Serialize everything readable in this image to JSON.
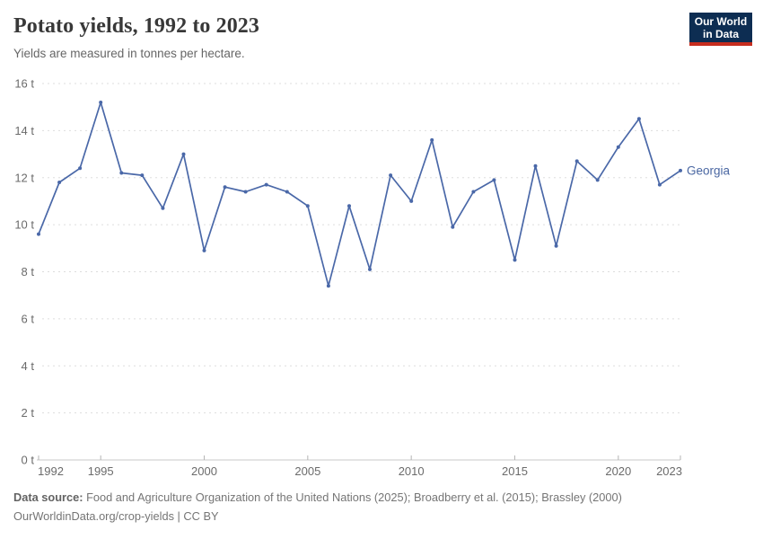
{
  "header": {
    "title": "Potato yields, 1992 to 2023",
    "subtitle": "Yields are measured in tonnes per hectare."
  },
  "logo": {
    "line1": "Our World",
    "line2": "in Data"
  },
  "chart_data": {
    "type": "line",
    "title": "Potato yields, 1992 to 2023",
    "unit": "tonnes per hectare",
    "x": [
      1992,
      1993,
      1994,
      1995,
      1996,
      1997,
      1998,
      1999,
      2000,
      2001,
      2002,
      2003,
      2004,
      2005,
      2006,
      2007,
      2008,
      2009,
      2010,
      2011,
      2012,
      2013,
      2014,
      2015,
      2016,
      2017,
      2018,
      2019,
      2020,
      2021,
      2022,
      2023
    ],
    "series": [
      {
        "name": "Georgia",
        "color": "#4a68a8",
        "values": [
          9.6,
          11.8,
          12.4,
          15.2,
          12.2,
          12.1,
          10.7,
          13.0,
          8.9,
          11.6,
          11.4,
          11.7,
          11.4,
          10.8,
          7.4,
          10.8,
          8.1,
          12.1,
          11.0,
          13.6,
          9.9,
          11.4,
          11.9,
          8.5,
          12.5,
          9.1,
          12.7,
          11.9,
          13.3,
          14.5,
          11.7,
          12.3
        ]
      }
    ],
    "ylim": [
      0,
      16
    ],
    "yticks": [
      0,
      2,
      4,
      6,
      8,
      10,
      12,
      14,
      16
    ],
    "ytick_suffix": " t",
    "xticks": [
      1992,
      1995,
      2000,
      2005,
      2010,
      2015,
      2020,
      2023
    ],
    "grid": "horizontal-dashed",
    "legend_position": "right-of-line-end"
  },
  "footer": {
    "datasource_label": "Data source:",
    "datasource_text": " Food and Agriculture Organization of the United Nations (2025); Broadberry et al. (2015); Brassley (2000)",
    "attribution": "OurWorldinData.org/crop-yields | CC BY"
  },
  "colors": {
    "line": "#4a68a8",
    "series_label": "#4a67a2",
    "grid": "#dddddd",
    "axis": "#c8c8c8",
    "tick": "#b5b5b5",
    "tick_label": "#6b6b6b"
  }
}
